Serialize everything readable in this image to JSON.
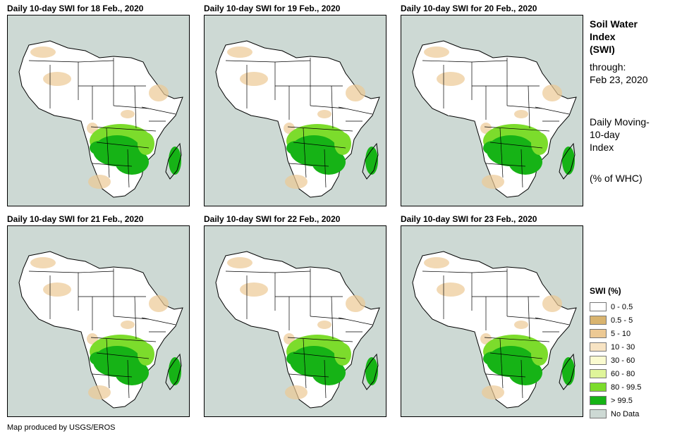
{
  "panels": [
    {
      "title": "Daily 10-day SWI for 18 Feb., 2020"
    },
    {
      "title": "Daily 10-day SWI for 19 Feb., 2020"
    },
    {
      "title": "Daily 10-day SWI for 20 Feb., 2020"
    },
    {
      "title": "Daily 10-day SWI for 21 Feb., 2020"
    },
    {
      "title": "Daily 10-day SWI for 22 Feb., 2020"
    },
    {
      "title": "Daily 10-day SWI for 23 Feb., 2020"
    }
  ],
  "info": {
    "title_line1": "Soil Water",
    "title_line2": "Index",
    "title_line3": "(SWI)",
    "through_label": "through:",
    "through_date": "Feb 23, 2020",
    "index_line1": "Daily Moving-",
    "index_line2": "10-day",
    "index_line3": "Index",
    "units": "(% of WHC)"
  },
  "legend": {
    "title": "SWI (%)",
    "items": [
      {
        "label": "0 - 0.5",
        "color": "#ffffff"
      },
      {
        "label": "0.5 - 5",
        "color": "#d9b46f"
      },
      {
        "label": "5 - 10",
        "color": "#ecc994"
      },
      {
        "label": "10 - 30",
        "color": "#f7e3c3"
      },
      {
        "label": "30 - 60",
        "color": "#fafbd0"
      },
      {
        "label": "60 - 80",
        "color": "#dff59a"
      },
      {
        "label": "80 - 99.5",
        "color": "#7cdc2c"
      },
      {
        "label": "> 99.5",
        "color": "#16b316"
      },
      {
        "label": "No Data",
        "color": "#cdd9d4"
      }
    ]
  },
  "colors": {
    "ocean": "#cdd9d4",
    "land": "#ffffff",
    "wet": "#16b316",
    "moist": "#7cdc2c",
    "dry": "#ecc994"
  },
  "footer": "Map produced by USGS/EROS"
}
